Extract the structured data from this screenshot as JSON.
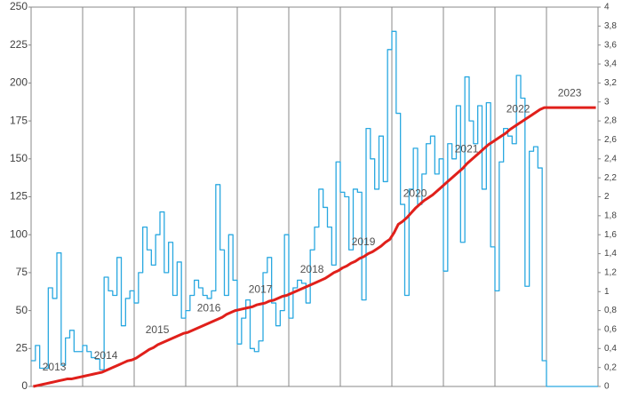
{
  "chart_data": {
    "type": "line",
    "categories": [
      null,
      null,
      null,
      null,
      null,
      null,
      null,
      null,
      null,
      null,
      null,
      null,
      null,
      null,
      null,
      null,
      null,
      null,
      null,
      null,
      null,
      null,
      null,
      null,
      null,
      null,
      null,
      null,
      null,
      null,
      null,
      null,
      null,
      null,
      null,
      null,
      null,
      null,
      null,
      null,
      null,
      null,
      null,
      null,
      null,
      null,
      null,
      null,
      null,
      null,
      null,
      null,
      null,
      null,
      null,
      null,
      null,
      null,
      null,
      null,
      null,
      null,
      null,
      null,
      null,
      null,
      null,
      null,
      null,
      null,
      null,
      null,
      null,
      null,
      null,
      null,
      null,
      null,
      null,
      null,
      null,
      null,
      null,
      null,
      null,
      null,
      null,
      null,
      null,
      null,
      null,
      null,
      null,
      null,
      null,
      null,
      null,
      null,
      null,
      null,
      null,
      null,
      null,
      null,
      null,
      null,
      null,
      null,
      null,
      null,
      null,
      null,
      null,
      null,
      null,
      null,
      null,
      null,
      null,
      null,
      null,
      null,
      null,
      null,
      null,
      null,
      null,
      null,
      null,
      null,
      null,
      null
    ],
    "annotations": [
      "2013",
      "2014",
      "2015",
      "2016",
      "2017",
      "2018",
      "2019",
      "2020",
      "2021",
      "2022",
      "2023"
    ],
    "series": [
      {
        "color": "#29a8e0",
        "step": true,
        "axis": "y",
        "values": [
          17,
          27,
          12,
          12,
          65,
          58,
          88,
          14,
          32,
          37,
          23,
          23,
          27,
          23,
          19,
          18,
          11,
          72,
          63,
          60,
          85,
          40,
          58,
          63,
          55,
          75,
          105,
          90,
          80,
          100,
          115,
          75,
          95,
          60,
          82,
          45,
          50,
          60,
          70,
          65,
          60,
          58,
          63,
          133,
          90,
          60,
          100,
          70,
          28,
          45,
          57,
          25,
          23,
          30,
          75,
          85,
          55,
          40,
          50,
          100,
          45,
          65,
          70,
          68,
          55,
          90,
          105,
          130,
          118,
          105,
          80,
          148,
          128,
          125,
          90,
          130,
          128,
          57,
          170,
          150,
          130,
          165,
          135,
          222,
          234,
          180,
          120,
          60,
          130,
          157,
          120,
          140,
          160,
          165,
          140,
          150,
          76,
          160,
          150,
          185,
          95,
          204,
          175,
          160,
          185,
          130,
          187,
          92,
          63,
          148,
          170,
          165,
          160,
          205,
          190,
          66,
          155,
          158,
          144,
          17,
          0,
          0,
          0,
          0,
          0,
          0,
          0,
          0,
          0,
          0,
          0,
          0
        ]
      },
      {
        "color": "#e0201b",
        "step": false,
        "axis": "y2",
        "values": [
          0,
          0.01,
          0.02,
          0.03,
          0.04,
          0.05,
          0.06,
          0.07,
          0.08,
          0.08,
          0.09,
          0.1,
          0.11,
          0.12,
          0.13,
          0.14,
          0.15,
          0.17,
          0.19,
          0.21,
          0.23,
          0.25,
          0.27,
          0.28,
          0.3,
          0.33,
          0.36,
          0.39,
          0.41,
          0.44,
          0.46,
          0.48,
          0.5,
          0.52,
          0.54,
          0.56,
          0.57,
          0.59,
          0.61,
          0.63,
          0.65,
          0.67,
          0.69,
          0.71,
          0.73,
          0.76,
          0.78,
          0.8,
          0.81,
          0.82,
          0.83,
          0.84,
          0.86,
          0.87,
          0.88,
          0.9,
          0.91,
          0.93,
          0.95,
          0.96,
          0.98,
          1,
          1.02,
          1.04,
          1.06,
          1.08,
          1.1,
          1.12,
          1.14,
          1.17,
          1.2,
          1.22,
          1.25,
          1.27,
          1.3,
          1.32,
          1.35,
          1.37,
          1.4,
          1.42,
          1.45,
          1.48,
          1.52,
          1.55,
          1.62,
          1.71,
          1.74,
          1.78,
          1.83,
          1.88,
          1.92,
          1.96,
          1.99,
          2.02,
          2.06,
          2.1,
          2.14,
          2.18,
          2.22,
          2.26,
          2.3,
          2.35,
          2.39,
          2.43,
          2.47,
          2.51,
          2.55,
          2.58,
          2.61,
          2.64,
          2.67,
          2.71,
          2.74,
          2.77,
          2.8,
          2.83,
          2.86,
          2.89,
          2.92,
          2.94,
          2.94,
          2.94,
          2.94,
          2.94,
          2.94,
          2.94,
          2.94,
          2.94,
          2.94,
          2.94,
          2.94,
          2.94
        ]
      }
    ],
    "ylim": [
      0,
      250
    ],
    "yticks": [
      0,
      25,
      50,
      75,
      100,
      125,
      150,
      175,
      200,
      225,
      250
    ],
    "y2lim": [
      0,
      4
    ],
    "y2ticks": [
      0,
      {
        "value": 0.2,
        "label": "0,2"
      },
      {
        "value": 0.4,
        "label": "0,4"
      },
      {
        "value": 0.6,
        "label": "0,6"
      },
      {
        "value": 0.8,
        "label": "0,8"
      },
      1,
      {
        "value": 1.2,
        "label": "1,2"
      },
      {
        "value": 1.4,
        "label": "1,4"
      },
      {
        "value": 1.6,
        "label": "1,6"
      },
      {
        "value": 1.8,
        "label": "1,8"
      },
      2,
      {
        "value": 2.2,
        "label": "2,2"
      },
      {
        "value": 2.4,
        "label": "2,4"
      },
      {
        "value": 2.6,
        "label": "2,6"
      },
      {
        "value": 2.8,
        "label": "2,8"
      },
      3,
      {
        "value": 3.2,
        "label": "3,2"
      },
      {
        "value": 3.4,
        "label": "3,4"
      },
      {
        "value": 3.6,
        "label": "3,6"
      },
      {
        "value": 3.8,
        "label": "3,8"
      },
      4
    ],
    "xgrid": true,
    "ygrid": false
  }
}
